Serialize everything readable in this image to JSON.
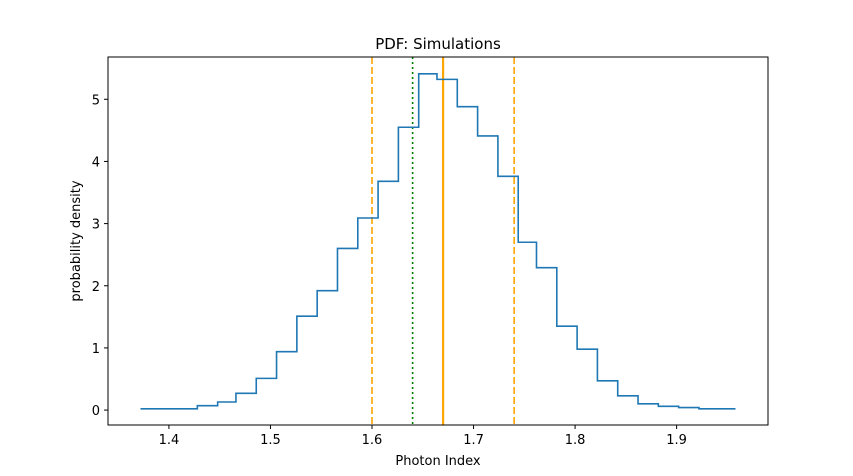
{
  "chart_data": {
    "type": "histogram-step",
    "title": "PDF: Simulations",
    "xlabel": "Photon Index",
    "ylabel": "probability density",
    "xlim": [
      1.34,
      1.99
    ],
    "ylim": [
      -0.24,
      5.68
    ],
    "x_ticks": [
      1.4,
      1.5,
      1.6,
      1.7,
      1.8,
      1.9
    ],
    "x_tick_labels": [
      "1.4",
      "1.5",
      "1.6",
      "1.7",
      "1.8",
      "1.9"
    ],
    "y_ticks": [
      0,
      1,
      2,
      3,
      4,
      5
    ],
    "y_tick_labels": [
      "0",
      "1",
      "2",
      "3",
      "4",
      "5"
    ],
    "grid": false,
    "series": [
      {
        "name": "PDF",
        "color": "#1f77b4",
        "bin_edges": [
          1.372,
          1.428,
          1.448,
          1.466,
          1.486,
          1.506,
          1.526,
          1.546,
          1.566,
          1.586,
          1.606,
          1.626,
          1.646,
          1.664,
          1.684,
          1.704,
          1.724,
          1.744,
          1.762,
          1.782,
          1.802,
          1.822,
          1.842,
          1.862,
          1.882,
          1.902,
          1.922,
          1.958
        ],
        "values": [
          0.02,
          0.07,
          0.13,
          0.27,
          0.51,
          0.94,
          1.51,
          1.92,
          2.6,
          3.09,
          3.68,
          4.55,
          5.41,
          5.32,
          4.88,
          4.41,
          3.76,
          2.7,
          2.29,
          1.35,
          0.98,
          0.47,
          0.23,
          0.1,
          0.06,
          0.04,
          0.02
        ]
      }
    ],
    "vlines": [
      {
        "name": "lower-bound",
        "x": 1.6,
        "color": "#ffa500",
        "style": "dashed"
      },
      {
        "name": "upper-bound",
        "x": 1.74,
        "color": "#ffa500",
        "style": "dashed"
      },
      {
        "name": "central-value",
        "x": 1.67,
        "color": "#ffa500",
        "style": "solid"
      },
      {
        "name": "reference-value",
        "x": 1.64,
        "color": "#008000",
        "style": "dotted"
      }
    ]
  }
}
